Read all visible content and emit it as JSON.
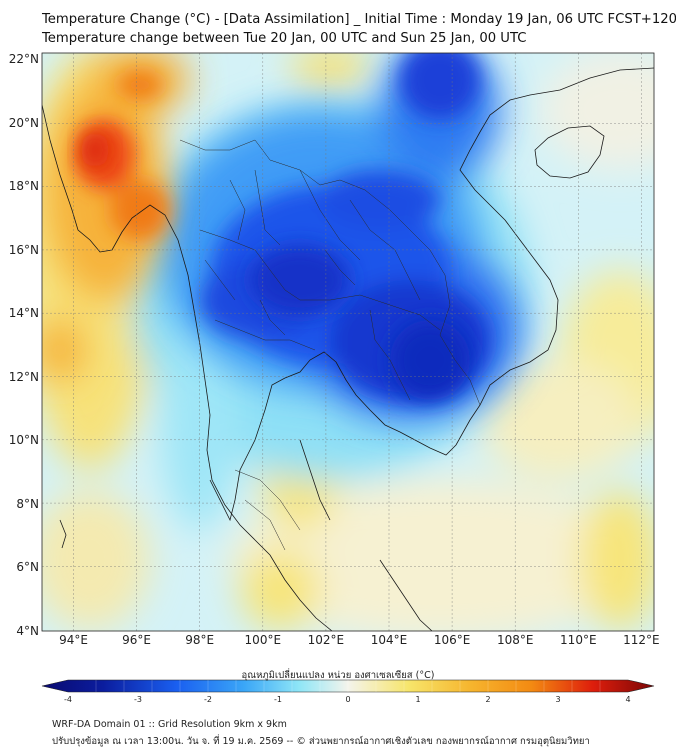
{
  "header": {
    "title_line1": "Temperature Change (°C) - [Data Assimilation] _ Initial Time : Monday 19 Jan, 06 UTC FCST+120",
    "title_line2": "Temperature change between Tue 20 Jan, 00 UTC and Sun 25 Jan, 00 UTC"
  },
  "map": {
    "lat_labels": [
      "22°N",
      "20°N",
      "18°N",
      "16°N",
      "14°N",
      "12°N",
      "10°N",
      "8°N",
      "6°N",
      "4°N"
    ],
    "lon_labels": [
      "94°E",
      "96°E",
      "98°E",
      "100°E",
      "102°E",
      "104°E",
      "106°E",
      "108°E",
      "110°E",
      "112°E"
    ],
    "lat_range": [
      4,
      22.3
    ],
    "lon_range": [
      93,
      112.4
    ]
  },
  "colorbar": {
    "label": "อุณหภูมิเปลี่ยนแปลง หน่วย องศาเซลเซียส (°C)",
    "ticks": [
      "-4",
      "-3",
      "-2",
      "-1",
      "0",
      "1",
      "2",
      "3",
      "4"
    ],
    "colors": {
      "strong_cold": "#0b1d9e",
      "cold": "#1a5ff0",
      "cool": "#5ad2f5",
      "neutral": "#f4f4ec",
      "warm": "#f7e56a",
      "hot": "#f38a12",
      "very_hot": "#de1e0c",
      "extreme": "#7a0606"
    }
  },
  "footer": {
    "line1": "WRF-DA Domain 01 :: Grid Resolution 9km x 9km",
    "line2": "ปรับปรุงข้อมูล ณ เวลา 13:00น. วัน จ. ที่ 19 ม.ค. 2569 -- © ส่วนพยากรณ์อากาศเชิงตัวเลข กองพยากรณ์อากาศ กรมอุตุนิยมวิทยา"
  }
}
